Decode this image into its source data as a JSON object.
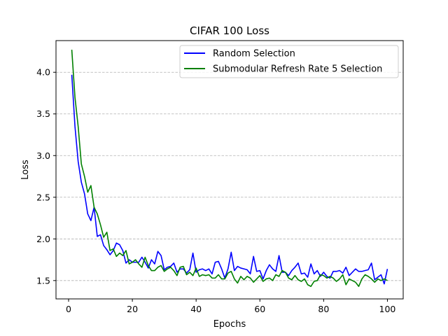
{
  "chart_data": {
    "type": "line",
    "title": "CIFAR 100 Loss",
    "xlabel": "Epochs",
    "ylabel": "Loss",
    "xlim": [
      -3.95,
      104.95
    ],
    "ylim": [
      1.28,
      4.38
    ],
    "xticks": [
      0,
      20,
      40,
      60,
      80,
      100
    ],
    "yticks": [
      1.5,
      2.0,
      2.5,
      3.0,
      3.5,
      4.0
    ],
    "xtick_labels": [
      "0",
      "20",
      "40",
      "60",
      "80",
      "100"
    ],
    "ytick_labels": [
      "1.5",
      "2.0",
      "2.5",
      "3.0",
      "3.5",
      "4.0"
    ],
    "grid": "y-dashed",
    "legend_position": "top-right",
    "x": [
      1,
      2,
      3,
      4,
      5,
      6,
      7,
      8,
      9,
      10,
      11,
      12,
      13,
      14,
      15,
      16,
      17,
      18,
      19,
      20,
      21,
      22,
      23,
      24,
      25,
      26,
      27,
      28,
      29,
      30,
      31,
      32,
      33,
      34,
      35,
      36,
      37,
      38,
      39,
      40,
      41,
      42,
      43,
      44,
      45,
      46,
      47,
      48,
      49,
      50,
      51,
      52,
      53,
      54,
      55,
      56,
      57,
      58,
      59,
      60,
      61,
      62,
      63,
      64,
      65,
      66,
      67,
      68,
      69,
      70,
      71,
      72,
      73,
      74,
      75,
      76,
      77,
      78,
      79,
      80,
      81,
      82,
      83,
      84,
      85,
      86,
      87,
      88,
      89,
      90,
      91,
      92,
      93,
      94,
      95,
      96,
      97,
      98,
      99,
      100
    ],
    "series": [
      {
        "name": "Random Selection",
        "color": "#0000ff",
        "values": [
          3.97,
          3.35,
          2.93,
          2.68,
          2.54,
          2.3,
          2.22,
          2.38,
          2.03,
          2.05,
          1.92,
          1.87,
          1.81,
          1.86,
          1.95,
          1.93,
          1.86,
          1.71,
          1.75,
          1.72,
          1.72,
          1.72,
          1.78,
          1.72,
          1.65,
          1.75,
          1.7,
          1.85,
          1.8,
          1.63,
          1.66,
          1.67,
          1.71,
          1.6,
          1.64,
          1.64,
          1.59,
          1.63,
          1.83,
          1.6,
          1.63,
          1.64,
          1.62,
          1.64,
          1.58,
          1.72,
          1.73,
          1.64,
          1.53,
          1.64,
          1.84,
          1.62,
          1.67,
          1.65,
          1.64,
          1.63,
          1.58,
          1.79,
          1.61,
          1.62,
          1.52,
          1.62,
          1.69,
          1.64,
          1.61,
          1.8,
          1.6,
          1.6,
          1.56,
          1.62,
          1.66,
          1.71,
          1.58,
          1.59,
          1.54,
          1.7,
          1.58,
          1.62,
          1.55,
          1.6,
          1.55,
          1.53,
          1.61,
          1.61,
          1.62,
          1.59,
          1.66,
          1.56,
          1.6,
          1.64,
          1.61,
          1.61,
          1.62,
          1.63,
          1.71,
          1.51,
          1.54,
          1.57,
          1.46,
          1.64
        ]
      },
      {
        "name": "Submodular Refresh Rate 5 Selection",
        "color": "#008000",
        "values": [
          4.27,
          3.7,
          3.35,
          2.9,
          2.75,
          2.56,
          2.64,
          2.38,
          2.3,
          2.17,
          2.02,
          2.08,
          1.86,
          1.88,
          1.79,
          1.83,
          1.8,
          1.86,
          1.7,
          1.72,
          1.75,
          1.7,
          1.66,
          1.78,
          1.68,
          1.62,
          1.62,
          1.66,
          1.68,
          1.61,
          1.64,
          1.66,
          1.62,
          1.56,
          1.66,
          1.67,
          1.57,
          1.6,
          1.56,
          1.65,
          1.55,
          1.57,
          1.56,
          1.57,
          1.53,
          1.53,
          1.57,
          1.52,
          1.52,
          1.59,
          1.61,
          1.52,
          1.47,
          1.55,
          1.51,
          1.55,
          1.53,
          1.48,
          1.52,
          1.56,
          1.49,
          1.52,
          1.53,
          1.5,
          1.57,
          1.55,
          1.62,
          1.6,
          1.53,
          1.51,
          1.56,
          1.51,
          1.49,
          1.52,
          1.45,
          1.43,
          1.49,
          1.5,
          1.57,
          1.56,
          1.53,
          1.55,
          1.53,
          1.49,
          1.52,
          1.57,
          1.45,
          1.52,
          1.5,
          1.48,
          1.43,
          1.52,
          1.57,
          1.55,
          1.52,
          1.48,
          1.52,
          1.5,
          1.52,
          1.5
        ]
      }
    ]
  }
}
